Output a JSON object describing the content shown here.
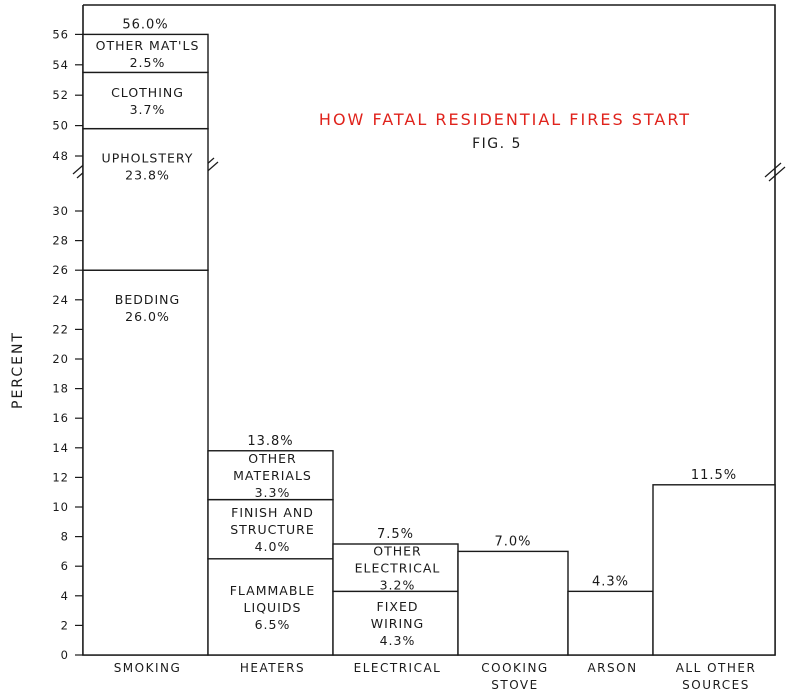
{
  "chart_data": {
    "type": "bar",
    "stacked": true,
    "title": "HOW FATAL RESIDENTIAL FIRES START",
    "subtitle": "FIG. 5",
    "colors": {
      "title": "#e0231c",
      "ink": "#1a1a1a",
      "background": "#ffffff"
    },
    "ylabel": "PERCENT",
    "xlabel": "",
    "axis_break": {
      "from": 31,
      "to": 48
    },
    "yticks_lower": [
      "0",
      "2",
      "4",
      "6",
      "8",
      "10",
      "12",
      "14",
      "16",
      "18",
      "20",
      "22",
      "24",
      "26",
      "28",
      "30"
    ],
    "yticks_upper": [
      "48",
      "50",
      "52",
      "54",
      "56"
    ],
    "ylim": [
      0,
      57
    ],
    "categories": [
      "SMOKING",
      "HEATERS",
      "ELECTRICAL",
      "COOKING STOVE",
      "ARSON",
      "ALL OTHER SOURCES"
    ],
    "bars": [
      {
        "category": "SMOKING",
        "category_lines": [
          "SMOKING"
        ],
        "total": 56.0,
        "total_label": "56.0%",
        "segments": [
          {
            "name": "BEDDING",
            "value": 26.0,
            "label_lines": [
              "BEDDING",
              "26.0%"
            ]
          },
          {
            "name": "UPHOLSTERY",
            "value": 23.8,
            "label_lines": [
              "UPHOLSTERY",
              "23.8%"
            ]
          },
          {
            "name": "CLOTHING",
            "value": 3.7,
            "label_lines": [
              "CLOTHING",
              "3.7%"
            ]
          },
          {
            "name": "OTHER MAT'LS",
            "value": 2.5,
            "label_lines": [
              "OTHER MAT'LS",
              "2.5%"
            ]
          }
        ]
      },
      {
        "category": "HEATERS",
        "category_lines": [
          "HEATERS"
        ],
        "total": 13.8,
        "total_label": "13.8%",
        "segments": [
          {
            "name": "FLAMMABLE LIQUIDS",
            "value": 6.5,
            "label_lines": [
              "FLAMMABLE",
              "LIQUIDS",
              "6.5%"
            ]
          },
          {
            "name": "FINISH AND STRUCTURE",
            "value": 4.0,
            "label_lines": [
              "FINISH AND",
              "STRUCTURE",
              "4.0%"
            ]
          },
          {
            "name": "OTHER MATERIALS",
            "value": 3.3,
            "label_lines": [
              "OTHER",
              "MATERIALS",
              "3.3%"
            ]
          }
        ]
      },
      {
        "category": "ELECTRICAL",
        "category_lines": [
          "ELECTRICAL"
        ],
        "total": 7.5,
        "total_label": "7.5%",
        "segments": [
          {
            "name": "FIXED WIRING",
            "value": 4.3,
            "label_lines": [
              "FIXED",
              "WIRING",
              "4.3%"
            ]
          },
          {
            "name": "OTHER ELECTRICAL",
            "value": 3.2,
            "label_lines": [
              "OTHER",
              "ELECTRICAL",
              "3.2%"
            ]
          }
        ]
      },
      {
        "category": "COOKING STOVE",
        "category_lines": [
          "COOKING",
          "STOVE"
        ],
        "total": 7.0,
        "total_label": "7.0%",
        "segments": [
          {
            "name": "COOKING STOVE",
            "value": 7.0,
            "label_lines": []
          }
        ]
      },
      {
        "category": "ARSON",
        "category_lines": [
          "ARSON"
        ],
        "total": 4.3,
        "total_label": "4.3%",
        "segments": [
          {
            "name": "ARSON",
            "value": 4.3,
            "label_lines": []
          }
        ]
      },
      {
        "category": "ALL OTHER SOURCES",
        "category_lines": [
          "ALL OTHER",
          "SOURCES"
        ],
        "total": 11.5,
        "total_label": "11.5%",
        "segments": [
          {
            "name": "ALL OTHER SOURCES",
            "value": 11.5,
            "label_lines": []
          }
        ]
      }
    ]
  }
}
